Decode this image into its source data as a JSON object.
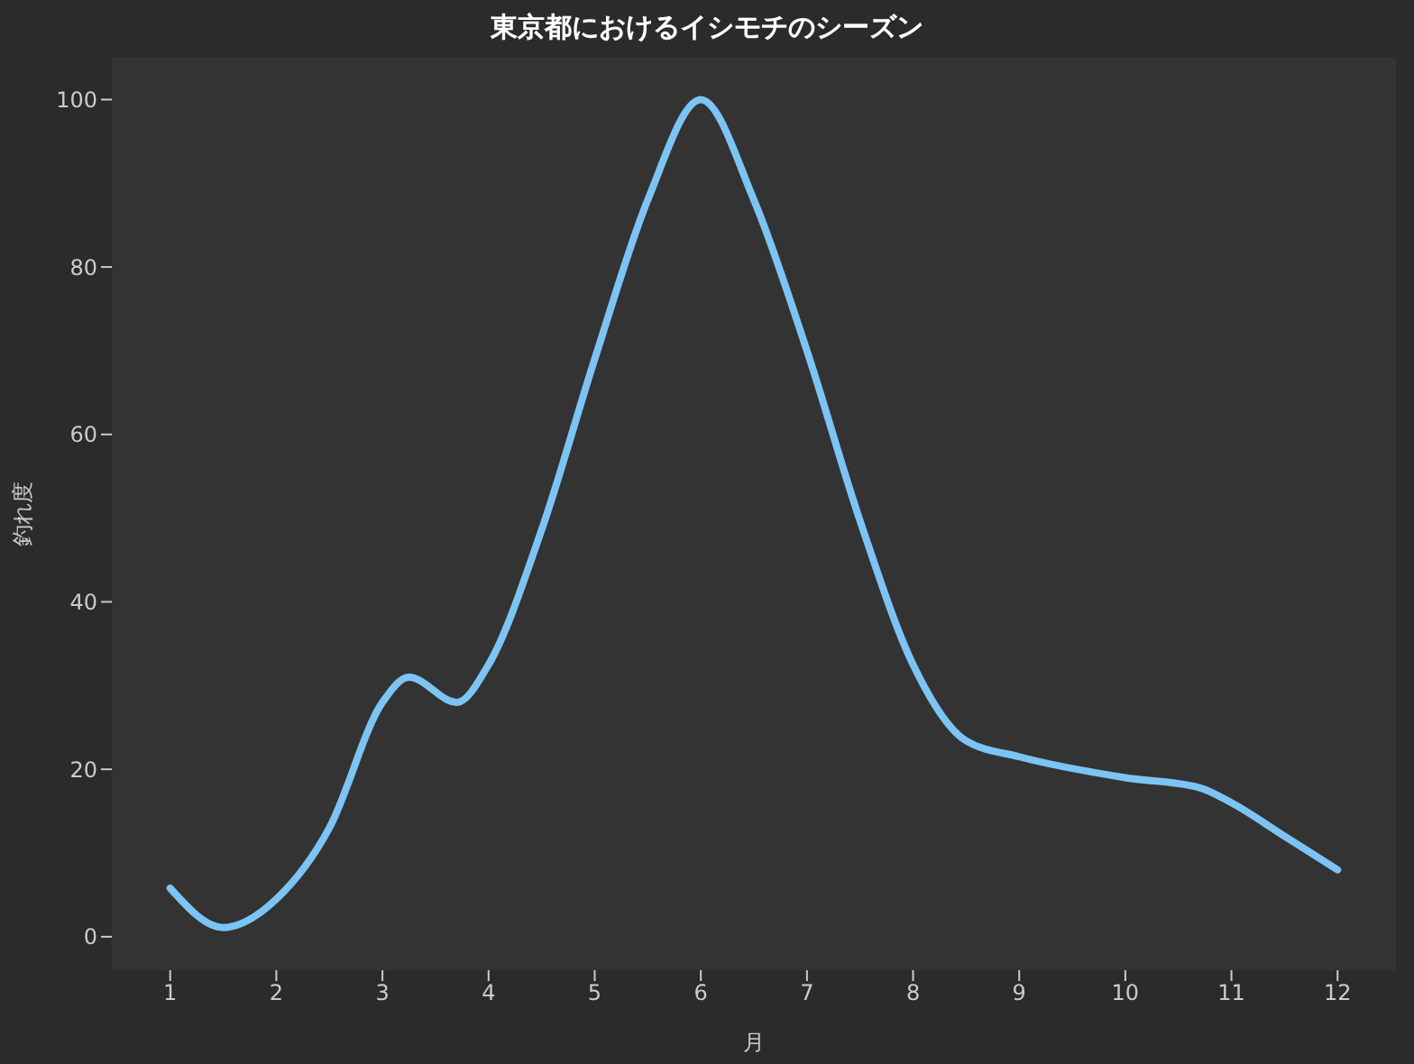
{
  "chart_data": {
    "type": "line",
    "title": "東京都におけるイシモチのシーズン",
    "xlabel": "月",
    "ylabel": "釣れ度",
    "series": [
      {
        "color": "#7cc4f4",
        "x": [
          1,
          1.5,
          2,
          2.5,
          3,
          3.25,
          3.7,
          4,
          4.5,
          5,
          5.5,
          6,
          6.5,
          7,
          7.5,
          8,
          8.5,
          9,
          10,
          10.7,
          11,
          11.5,
          12
        ],
        "values": [
          5.8,
          1.1,
          4.5,
          13,
          28,
          31,
          28,
          32.5,
          48.6,
          69,
          88,
          100,
          88,
          70,
          49.7,
          32.5,
          23.4,
          21.5,
          19,
          17.8,
          16,
          12,
          8
        ]
      }
    ],
    "xlim": [
      0.45,
      12.55
    ],
    "xticks": [
      1,
      2,
      3,
      4,
      5,
      6,
      7,
      8,
      9,
      10,
      11,
      12
    ],
    "ylim": [
      -4,
      105
    ],
    "yticks": [
      0,
      20,
      40,
      60,
      80,
      100
    ],
    "grid": false,
    "legend": false,
    "marker": "none",
    "line_style": "solid"
  }
}
